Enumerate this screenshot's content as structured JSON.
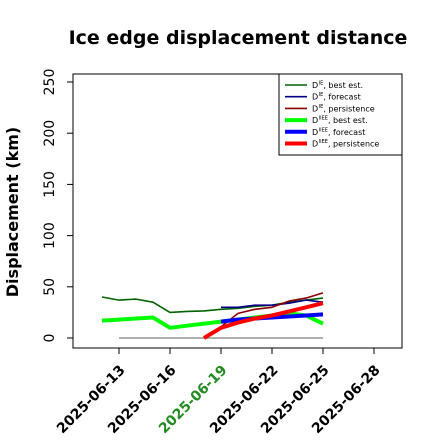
{
  "chart_data": {
    "type": "line",
    "title": "Ice edge displacement distance",
    "xlabel": "",
    "ylabel": "Displacement (km)",
    "ylim": [
      0,
      250
    ],
    "yticks": [
      0,
      50,
      100,
      150,
      200,
      250
    ],
    "xlim": [
      "2025-06-11",
      "2025-06-30"
    ],
    "xticks": [
      "2025-06-13",
      "2025-06-16",
      "2025-06-19",
      "2025-06-22",
      "2025-06-25",
      "2025-06-28"
    ],
    "highlighted_xtick": "2025-06-19",
    "highlight_color": "#228b22",
    "zero_line": {
      "from": "2025-06-13",
      "to": "2025-06-25",
      "y": 0,
      "color": "#808080"
    },
    "legend_position": "top-right",
    "series": [
      {
        "name": "D",
        "sup": "IE",
        "suffix": ", best est.",
        "color": "#006400",
        "width": "thin",
        "x": [
          "2025-06-12",
          "2025-06-13",
          "2025-06-14",
          "2025-06-15",
          "2025-06-16",
          "2025-06-17",
          "2025-06-18",
          "2025-06-19",
          "2025-06-20",
          "2025-06-21",
          "2025-06-22",
          "2025-06-23",
          "2025-06-24",
          "2025-06-25"
        ],
        "y": [
          40,
          37,
          38,
          35,
          25,
          26,
          26.5,
          28,
          29,
          31,
          32,
          35,
          37,
          39
        ]
      },
      {
        "name": "D",
        "sup": "IE",
        "suffix": ", forecast",
        "color": "#00008b",
        "width": "thin",
        "x": [
          "2025-06-19",
          "2025-06-20",
          "2025-06-21",
          "2025-06-22",
          "2025-06-23",
          "2025-06-24",
          "2025-06-25"
        ],
        "y": [
          30,
          30,
          32,
          32,
          34,
          37,
          35
        ]
      },
      {
        "name": "D",
        "sup": "IE",
        "suffix": ", persistence",
        "color": "#8b0000",
        "width": "thin",
        "x": [
          "2025-06-18",
          "2025-06-19",
          "2025-06-20",
          "2025-06-21",
          "2025-06-22",
          "2025-06-23",
          "2025-06-24",
          "2025-06-25"
        ],
        "y": [
          0,
          11,
          24,
          28,
          30,
          36,
          39,
          44
        ]
      },
      {
        "name": "D",
        "sup": "IIEE",
        "suffix": ", best est.",
        "color": "#00ff00",
        "width": "thick",
        "x": [
          "2025-06-12",
          "2025-06-13",
          "2025-06-14",
          "2025-06-15",
          "2025-06-16",
          "2025-06-17",
          "2025-06-18",
          "2025-06-19",
          "2025-06-20",
          "2025-06-21",
          "2025-06-22",
          "2025-06-23",
          "2025-06-24",
          "2025-06-25"
        ],
        "y": [
          17,
          18,
          19,
          20,
          10,
          12,
          14,
          16,
          18,
          20,
          22,
          24,
          22,
          14
        ]
      },
      {
        "name": "D",
        "sup": "IIEE",
        "suffix": ", forecast",
        "color": "#0000ff",
        "width": "thick",
        "x": [
          "2025-06-19",
          "2025-06-20",
          "2025-06-21",
          "2025-06-22",
          "2025-06-23",
          "2025-06-24",
          "2025-06-25"
        ],
        "y": [
          16,
          18,
          19,
          20,
          21,
          22,
          23
        ]
      },
      {
        "name": "D",
        "sup": "IIEE",
        "suffix": ", persistence",
        "color": "#ff0000",
        "width": "thick",
        "x": [
          "2025-06-18",
          "2025-06-19",
          "2025-06-20",
          "2025-06-21",
          "2025-06-22",
          "2025-06-23",
          "2025-06-24",
          "2025-06-25"
        ],
        "y": [
          0,
          10,
          15,
          19,
          22,
          26,
          30,
          34
        ]
      }
    ]
  }
}
